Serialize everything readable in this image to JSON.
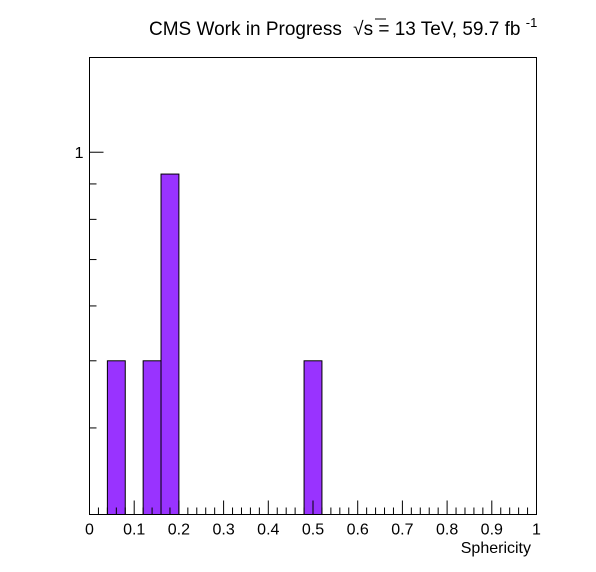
{
  "title": {
    "experiment": "CMS Work in Progress",
    "sqrt_s": "s",
    "energy": " = 13 TeV, 59.7 fb",
    "lumi_exponent": "-1"
  },
  "colors": {
    "bar_fill": "#9933ff",
    "bar_stroke": "#000000",
    "axis": "#000000",
    "background": "#ffffff"
  },
  "chart_data": {
    "type": "bar",
    "xlabel": "Sphericity",
    "ylabel": "",
    "xlim": [
      0,
      1
    ],
    "ylim": [
      0.3,
      1.37
    ],
    "y_scale": "log",
    "grid": false,
    "legend": "none",
    "bin_width": 0.04,
    "bins": [
      {
        "x_low": 0.04,
        "x_high": 0.08,
        "value": 0.5
      },
      {
        "x_low": 0.12,
        "x_high": 0.16,
        "value": 0.5
      },
      {
        "x_low": 0.16,
        "x_high": 0.2,
        "value": 0.93
      },
      {
        "x_low": 0.48,
        "x_high": 0.52,
        "value": 0.5
      }
    ],
    "x_ticks": [
      {
        "value": 0,
        "label": "0"
      },
      {
        "value": 0.1,
        "label": "0.1"
      },
      {
        "value": 0.2,
        "label": "0.2"
      },
      {
        "value": 0.3,
        "label": "0.3"
      },
      {
        "value": 0.4,
        "label": "0.4"
      },
      {
        "value": 0.5,
        "label": "0.5"
      },
      {
        "value": 0.6,
        "label": "0.6"
      },
      {
        "value": 0.7,
        "label": "0.7"
      },
      {
        "value": 0.8,
        "label": "0.8"
      },
      {
        "value": 0.9,
        "label": "0.9"
      },
      {
        "value": 1,
        "label": "1"
      }
    ],
    "y_ticks": [
      {
        "value": 1,
        "label": "1"
      }
    ],
    "y_minor_ticks": [
      0.4,
      0.5,
      0.6,
      0.7,
      0.8,
      0.9
    ]
  }
}
